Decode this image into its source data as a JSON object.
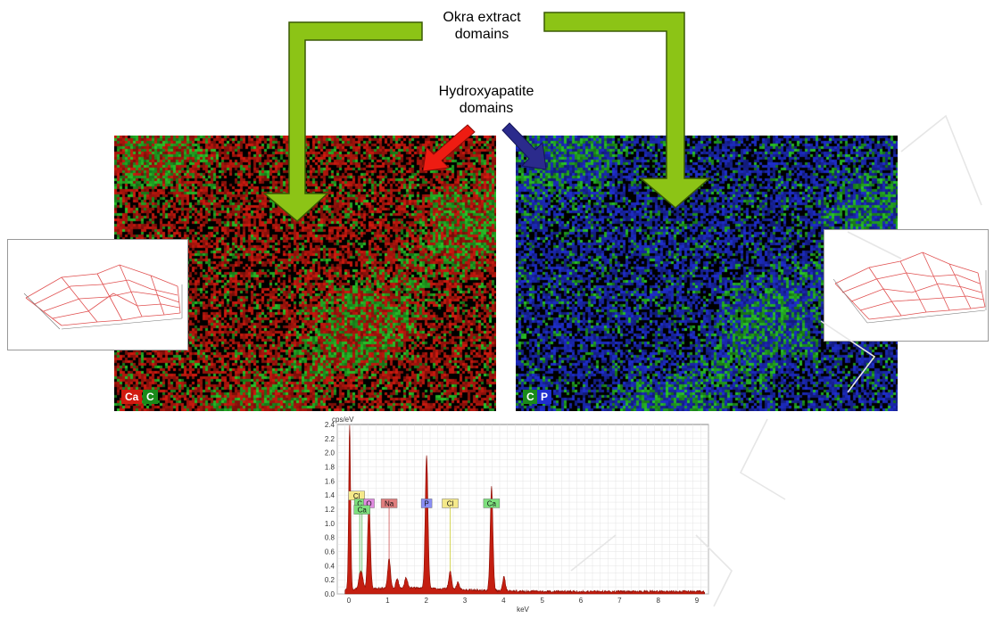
{
  "labels": {
    "okra_line1": "Okra extract",
    "okra_line2": "domains",
    "ha_line1": "Hydroxyapatite",
    "ha_line2": "domains"
  },
  "left_map": {
    "tag_ca": "Ca",
    "tag_c": "C",
    "base_color": "#d11a0f",
    "accent_color": "#28c428"
  },
  "right_map": {
    "tag_c": "C",
    "tag_p": "P",
    "base_color": "#1f2fcf",
    "accent_color": "#28c428"
  },
  "arrow_colors": {
    "okra": "#8cc416",
    "okra_outline": "#3a5a05",
    "ha_red": "#ee1c12",
    "ha_blue": "#2b2b8c"
  },
  "chart_data": {
    "type": "line",
    "title": "",
    "ylabel": "cps/eV",
    "xlabel": "keV",
    "xlim": [
      -0.3,
      9.3
    ],
    "ylim": [
      0,
      2.4
    ],
    "yticks": [
      "0.0",
      "0.2",
      "0.4",
      "0.6",
      "0.8",
      "1.0",
      "1.2",
      "1.4",
      "1.6",
      "1.8",
      "2.0",
      "2.2",
      "2.4"
    ],
    "xticks": [
      "0",
      "1",
      "2",
      "3",
      "4",
      "5",
      "6",
      "7",
      "8",
      "9"
    ],
    "fill_color": "#c41e10",
    "peaks": [
      {
        "x": 0.02,
        "y": 2.33
      },
      {
        "x": 0.28,
        "y": 0.18
      },
      {
        "x": 0.34,
        "y": 0.18
      },
      {
        "x": 0.52,
        "y": 1.22
      },
      {
        "x": 1.04,
        "y": 0.42
      },
      {
        "x": 1.25,
        "y": 0.12
      },
      {
        "x": 1.48,
        "y": 0.15
      },
      {
        "x": 2.01,
        "y": 1.89
      },
      {
        "x": 2.62,
        "y": 0.25
      },
      {
        "x": 2.82,
        "y": 0.1
      },
      {
        "x": 3.69,
        "y": 1.47
      },
      {
        "x": 4.01,
        "y": 0.2
      }
    ],
    "element_labels": [
      {
        "text": "Cl",
        "x": 0.2,
        "y": 1.38,
        "color": "#f5e98a"
      },
      {
        "text": "C",
        "x": 0.28,
        "y": 1.27,
        "color": "#7de07d"
      },
      {
        "text": "O",
        "x": 0.52,
        "y": 1.27,
        "color": "#e08ae0"
      },
      {
        "text": "Ca",
        "x": 0.34,
        "y": 1.18,
        "color": "#7de07d"
      },
      {
        "text": "Na",
        "x": 1.04,
        "y": 1.27,
        "color": "#e07d7d"
      },
      {
        "text": "P",
        "x": 2.01,
        "y": 1.27,
        "color": "#8a8ef5"
      },
      {
        "text": "Cl",
        "x": 2.62,
        "y": 1.27,
        "color": "#f5e98a"
      },
      {
        "text": "Ca",
        "x": 3.69,
        "y": 1.27,
        "color": "#7de07d"
      }
    ],
    "element_lines": [
      {
        "x": 0.28,
        "color": "#55bb55"
      },
      {
        "x": 0.34,
        "color": "#55bb55"
      },
      {
        "x": 0.52,
        "color": "#cc55cc"
      },
      {
        "x": 1.04,
        "color": "#cc5555"
      },
      {
        "x": 2.01,
        "color": "#5555cc"
      },
      {
        "x": 2.62,
        "color": "#cccc33"
      },
      {
        "x": 3.69,
        "color": "#55bb55"
      }
    ]
  }
}
